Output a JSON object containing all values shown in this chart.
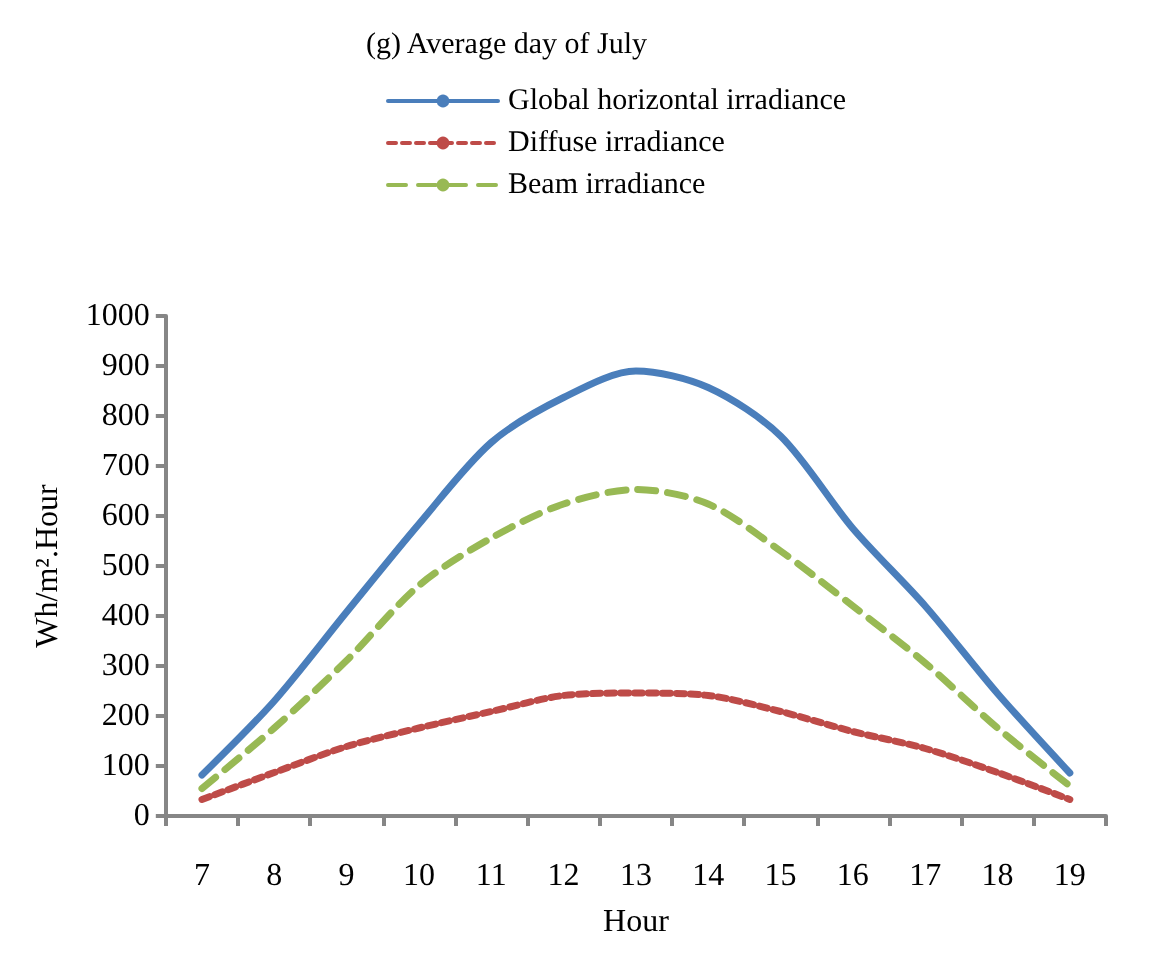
{
  "chart_data": {
    "type": "line",
    "title": "(g) Average day of July",
    "xlabel": "Hour",
    "ylabel": "Wh/m².Hour",
    "categories": [
      "7",
      "8",
      "9",
      "10",
      "11",
      "12",
      "13",
      "14",
      "15",
      "16",
      "17",
      "18",
      "19"
    ],
    "ylim": [
      0,
      1000
    ],
    "yticks": [
      0,
      100,
      200,
      300,
      400,
      500,
      600,
      700,
      800,
      900,
      1000
    ],
    "grid": false,
    "legend": "top",
    "marker": "none",
    "series": [
      {
        "name": "Global horizontal irradiance",
        "color": "#4a7ebb",
        "line_style": "solid",
        "values": [
          82,
          230,
          408,
          584,
          747,
          837,
          890,
          857,
          760,
          575,
          420,
          245,
          86
        ]
      },
      {
        "name": "Diffuse irradiance",
        "color": "#be4b48",
        "line_style": "dotted",
        "values": [
          33,
          87,
          139,
          176,
          209,
          241,
          246,
          241,
          209,
          169,
          135,
          87,
          33
        ]
      },
      {
        "name": "Beam irradiance",
        "color": "#98b954",
        "line_style": "dashed",
        "values": [
          55,
          176,
          311,
          461,
          556,
          624,
          653,
          624,
          530,
          420,
          306,
          176,
          60
        ]
      }
    ]
  }
}
